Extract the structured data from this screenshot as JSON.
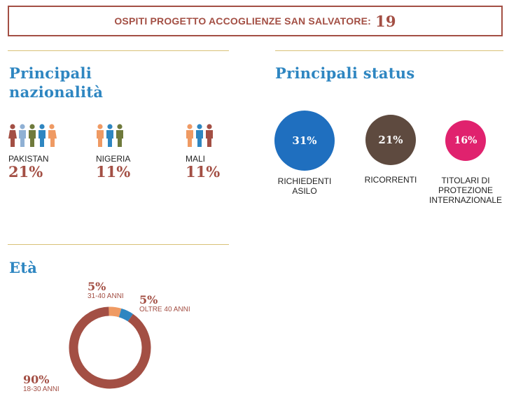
{
  "banner": {
    "label": "OSPITI PROGETTO ACCOGLIENZE SAN SALVATORE:",
    "count": "19"
  },
  "nationalities": {
    "title_line1": "Principali",
    "title_line2": "nazionalità",
    "items": [
      {
        "country": "PAKISTAN",
        "pct": "21%"
      },
      {
        "country": "NIGERIA",
        "pct": "11%"
      },
      {
        "country": "MALI",
        "pct": "11%"
      }
    ]
  },
  "status": {
    "title": "Principali status",
    "items": [
      {
        "pct": "31%",
        "label_lines": [
          "RICHIEDENTI",
          "ASILO"
        ],
        "color": "#1f6fbf"
      },
      {
        "pct": "21%",
        "label_lines": [
          "RICORRENTI"
        ],
        "color": "#5e4a3f"
      },
      {
        "pct": "16%",
        "label_lines": [
          "TITOLARI DI",
          "PROTEZIONE",
          "INTERNAZIONALE"
        ],
        "color": "#e0226e"
      }
    ]
  },
  "age": {
    "title": "Età",
    "chart_data": {
      "type": "pie",
      "categories": [
        "18-30 ANNI",
        "31-40 ANNI",
        "OLTRE 40 ANNI"
      ],
      "values": [
        90,
        5,
        5
      ],
      "labels": [
        "90%",
        "5%",
        "5%"
      ],
      "colors": [
        "#a34f44",
        "#ef9a63",
        "#2e86c1"
      ]
    }
  },
  "colors": {
    "accent": "#a34f44",
    "title": "#2e86c1",
    "rule": "#d8c177"
  }
}
